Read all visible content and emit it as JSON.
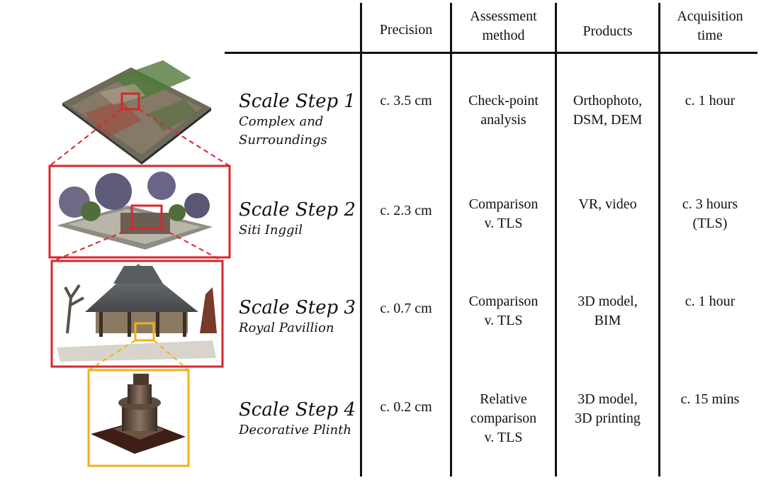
{
  "headers": {
    "precision": "Precision",
    "assessment": "Assessment\nmethod",
    "products": "Products",
    "acquisition": "Acquisition\ntime"
  },
  "rows": [
    {
      "title": "Scale Step 1",
      "subtitle": "Complex and\nSurroundings",
      "precision": "c. 3.5 cm",
      "assessment": "Check-point\nanalysis",
      "products": "Orthophoto,\nDSM, DEM",
      "acquisition": "c. 1 hour"
    },
    {
      "title": "Scale Step 2",
      "subtitle": "Siti Inggil",
      "precision": "c. 2.3 cm",
      "assessment": "Comparison\nv. TLS",
      "products": "VR, video",
      "acquisition": "c. 3 hours\n(TLS)"
    },
    {
      "title": "Scale Step 3",
      "subtitle": "Royal Pavillion",
      "precision": "c. 0.7 cm",
      "assessment": "Comparison\nv. TLS",
      "products": "3D model,\nBIM",
      "acquisition": "c. 1 hour"
    },
    {
      "title": "Scale Step 4",
      "subtitle": "Decorative Plinth",
      "precision": "c. 0.2 cm",
      "assessment": "Relative\ncomparison\nv. TLS",
      "products": "3D model,\n3D printing",
      "acquisition": "c. 15 mins"
    }
  ],
  "colors": {
    "frame_red": "#d8262d",
    "frame_yellow": "#f2b21a",
    "rule": "#111111"
  },
  "images": [
    {
      "name": "aerial-orthophoto-image"
    },
    {
      "name": "siti-inggil-pointcloud-image"
    },
    {
      "name": "royal-pavilion-model-image"
    },
    {
      "name": "decorative-plinth-model-image"
    }
  ]
}
